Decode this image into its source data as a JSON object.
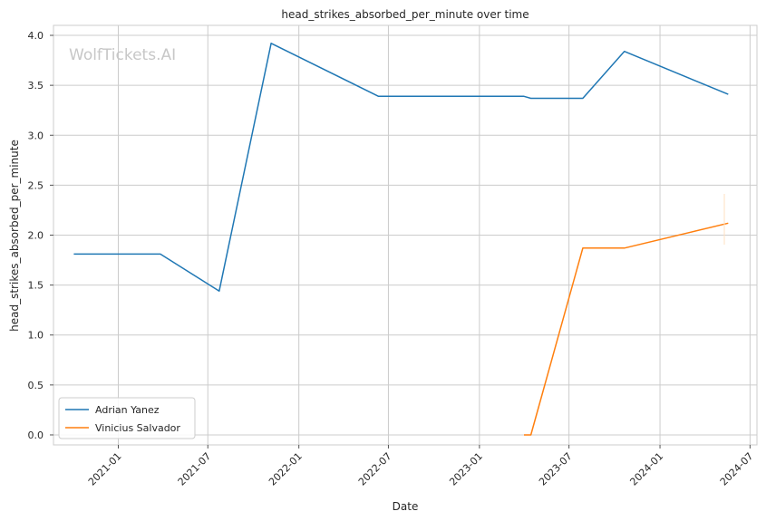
{
  "chart_data": {
    "type": "line",
    "title": "head_strikes_absorbed_per_minute over time",
    "xlabel": "Date",
    "ylabel": "head_strikes_absorbed_per_minute",
    "watermark": "WolfTickets.AI",
    "xlim": [
      "2020-08-23",
      "2024-07-15"
    ],
    "ylim": [
      -0.1,
      4.1
    ],
    "x_ticks": [
      "2021-01",
      "2021-07",
      "2022-01",
      "2022-07",
      "2023-01",
      "2023-07",
      "2024-01",
      "2024-07"
    ],
    "x_tick_dates": [
      "2021-01-01",
      "2021-07-01",
      "2022-01-01",
      "2022-07-01",
      "2023-01-01",
      "2023-07-01",
      "2024-01-01",
      "2024-07-01"
    ],
    "y_ticks": [
      "0.0",
      "0.5",
      "1.0",
      "1.5",
      "2.0",
      "2.5",
      "3.0",
      "3.5",
      "4.0"
    ],
    "grid": true,
    "legend_position": "lower-left",
    "series": [
      {
        "name": "Adrian Yanez",
        "color": "#1f77b4",
        "points": [
          {
            "x": "2020-10-03",
            "y": 1.81
          },
          {
            "x": "2021-03-27",
            "y": 1.81
          },
          {
            "x": "2021-07-24",
            "y": 1.44
          },
          {
            "x": "2021-11-06",
            "y": 3.92
          },
          {
            "x": "2022-06-11",
            "y": 3.39
          },
          {
            "x": "2023-04-01",
            "y": 3.39
          },
          {
            "x": "2023-04-15",
            "y": 3.37
          },
          {
            "x": "2023-07-29",
            "y": 3.37
          },
          {
            "x": "2023-10-21",
            "y": 3.84
          },
          {
            "x": "2024-05-18",
            "y": 3.41
          }
        ]
      },
      {
        "name": "Vinicius Salvador",
        "color": "#ff7f0e",
        "points": [
          {
            "x": "2023-04-01",
            "y": 0.0
          },
          {
            "x": "2023-04-15",
            "y": 0.0
          },
          {
            "x": "2023-07-29",
            "y": 1.87
          },
          {
            "x": "2023-10-21",
            "y": 1.87
          },
          {
            "x": "2024-05-18",
            "y": 2.12
          }
        ]
      }
    ]
  }
}
